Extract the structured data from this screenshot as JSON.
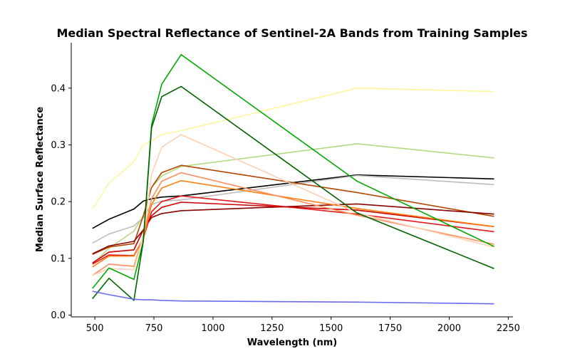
{
  "chart_data": {
    "type": "line",
    "title": "Median Spectral Reflectance of Sentinel-2A Bands from Training Samples",
    "xlabel": "Wavelength (nm)",
    "ylabel": "Median Surface Reflectance",
    "xlim": [
      400,
      2270
    ],
    "ylim": [
      -0.003,
      0.48
    ],
    "xticks": [
      500,
      750,
      1000,
      1250,
      1500,
      1750,
      2000,
      2250
    ],
    "yticks": [
      0.0,
      0.1,
      0.2,
      0.3,
      0.4
    ],
    "grid": false,
    "legend": "none",
    "x": [
      490,
      560,
      665,
      705,
      740,
      783,
      865,
      1610,
      2190
    ],
    "series": [
      {
        "color": "#fff59d",
        "values": [
          0.187,
          0.233,
          0.27,
          0.3,
          0.307,
          0.318,
          0.325,
          0.4,
          0.394
        ]
      },
      {
        "color": "#b5d97f",
        "values": [
          0.09,
          0.118,
          0.148,
          0.175,
          0.225,
          0.245,
          0.262,
          0.302,
          0.277
        ]
      },
      {
        "color": "#000000",
        "values": [
          0.153,
          0.169,
          0.187,
          0.201,
          0.205,
          0.208,
          0.21,
          0.247,
          0.24
        ]
      },
      {
        "color": "#bdbdbd",
        "values": [
          0.127,
          0.143,
          0.157,
          0.172,
          0.195,
          0.201,
          0.203,
          0.246,
          0.23
        ]
      },
      {
        "color": "#b34700",
        "values": [
          0.107,
          0.12,
          0.126,
          0.175,
          0.225,
          0.251,
          0.264,
          0.216,
          0.174
        ]
      },
      {
        "color": "#8b0000",
        "values": [
          0.108,
          0.122,
          0.13,
          0.15,
          0.172,
          0.179,
          0.184,
          0.196,
          0.178
        ]
      },
      {
        "color": "#e31a1c",
        "values": [
          0.09,
          0.106,
          0.105,
          0.135,
          0.182,
          0.2,
          0.21,
          0.178,
          0.147
        ]
      },
      {
        "color": "#cc0000",
        "values": [
          0.092,
          0.111,
          0.115,
          0.15,
          0.175,
          0.19,
          0.199,
          0.185,
          0.156
        ]
      },
      {
        "color": "#ff7f0e",
        "values": [
          0.085,
          0.104,
          0.104,
          0.135,
          0.195,
          0.224,
          0.237,
          0.188,
          0.156
        ]
      },
      {
        "color": "#fd8d5c",
        "values": [
          0.07,
          0.09,
          0.086,
          0.14,
          0.205,
          0.236,
          0.251,
          0.176,
          0.125
        ]
      },
      {
        "color": "#fdd0b5",
        "values": [
          0.07,
          0.082,
          0.08,
          0.14,
          0.248,
          0.296,
          0.318,
          0.18,
          0.12
        ]
      },
      {
        "color": "#00aa00",
        "values": [
          0.047,
          0.083,
          0.063,
          0.13,
          0.335,
          0.407,
          0.459,
          0.236,
          0.121
        ]
      },
      {
        "color": "#006400",
        "values": [
          0.029,
          0.065,
          0.026,
          0.13,
          0.33,
          0.385,
          0.403,
          0.18,
          0.082
        ]
      },
      {
        "color": "#6a6af0",
        "values": [
          0.042,
          0.036,
          0.028,
          0.027,
          0.027,
          0.026,
          0.025,
          0.023,
          0.02
        ]
      }
    ]
  }
}
